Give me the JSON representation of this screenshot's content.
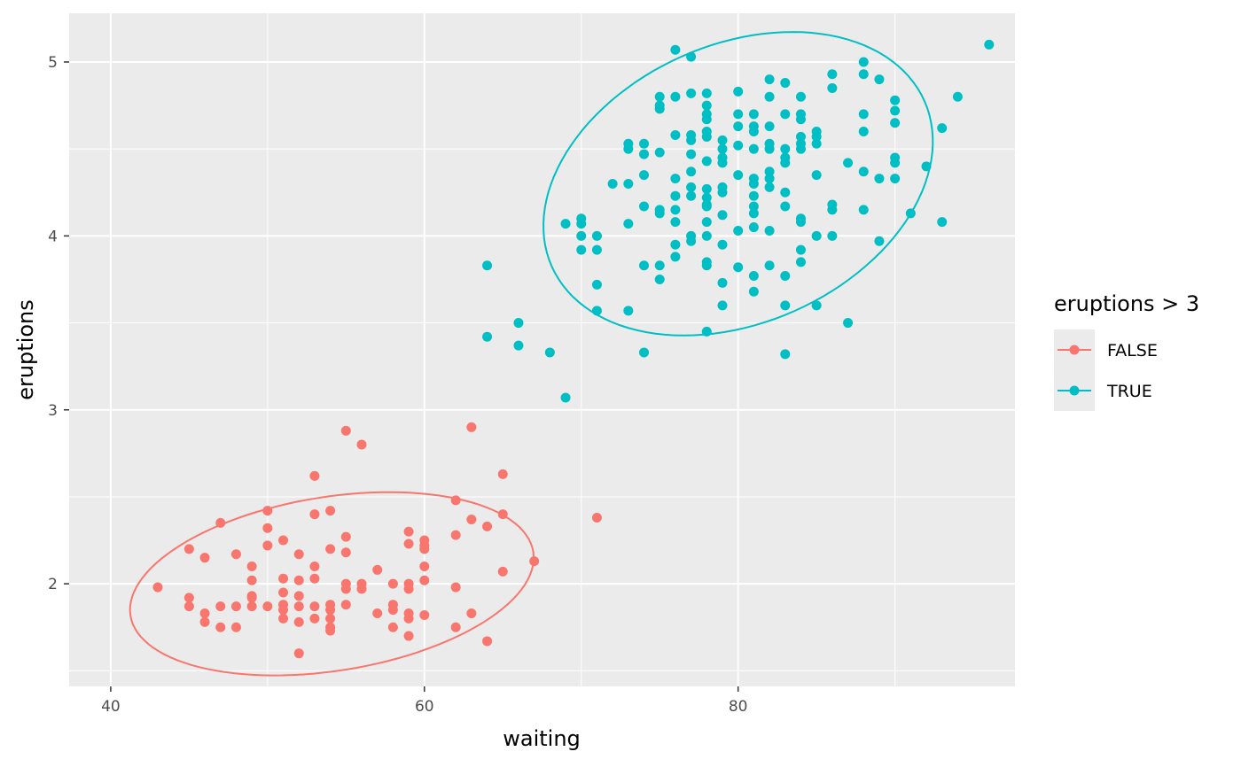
{
  "chart_data": {
    "type": "scatter",
    "xlabel": "waiting",
    "ylabel": "eruptions",
    "xlim": [
      37.35,
      97.65
    ],
    "ylim": [
      1.41,
      5.28
    ],
    "x_ticks": [
      40,
      60,
      80
    ],
    "y_ticks": [
      2,
      3,
      4,
      5
    ],
    "grid": true,
    "legend": {
      "title": "eruptions > 3",
      "position": "right",
      "entries": [
        "FALSE",
        "TRUE"
      ]
    },
    "colors": {
      "FALSE": "#F8766D",
      "TRUE": "#00BFC4"
    },
    "ellipses": [
      {
        "series": "FALSE",
        "cx": 54.1,
        "cy": 2.0,
        "rx": 13.0,
        "ry": 0.5,
        "rotation_deg": -9
      },
      {
        "series": "TRUE",
        "cx": 80.0,
        "cy": 4.3,
        "rx": 13.0,
        "ry": 0.8,
        "rotation_deg": -24
      }
    ],
    "series": [
      {
        "name": "FALSE",
        "points": [
          [
            43,
            1.98
          ],
          [
            45,
            2.2
          ],
          [
            45,
            1.92
          ],
          [
            45,
            1.87
          ],
          [
            46,
            2.15
          ],
          [
            46,
            1.83
          ],
          [
            46,
            1.78
          ],
          [
            47,
            2.35
          ],
          [
            47,
            1.87
          ],
          [
            47,
            1.75
          ],
          [
            48,
            2.17
          ],
          [
            48,
            1.87
          ],
          [
            48,
            1.75
          ],
          [
            49,
            2.1
          ],
          [
            49,
            2.02
          ],
          [
            49,
            1.93
          ],
          [
            49,
            1.92
          ],
          [
            49,
            1.87
          ],
          [
            50,
            2.42
          ],
          [
            50,
            2.32
          ],
          [
            50,
            2.22
          ],
          [
            50,
            1.87
          ],
          [
            51,
            2.25
          ],
          [
            51,
            2.03
          ],
          [
            51,
            1.95
          ],
          [
            51,
            1.88
          ],
          [
            51,
            1.85
          ],
          [
            51,
            1.8
          ],
          [
            52,
            2.17
          ],
          [
            52,
            2.02
          ],
          [
            52,
            1.93
          ],
          [
            52,
            1.87
          ],
          [
            52,
            1.78
          ],
          [
            52,
            1.6
          ],
          [
            53,
            2.62
          ],
          [
            53,
            2.4
          ],
          [
            53,
            2.1
          ],
          [
            53,
            2.03
          ],
          [
            53,
            1.87
          ],
          [
            53,
            1.8
          ],
          [
            54,
            2.42
          ],
          [
            54,
            2.2
          ],
          [
            54,
            1.88
          ],
          [
            54,
            1.85
          ],
          [
            54,
            1.8
          ],
          [
            54,
            1.75
          ],
          [
            54,
            1.73
          ],
          [
            55,
            2.88
          ],
          [
            55,
            2.27
          ],
          [
            55,
            2.18
          ],
          [
            55,
            2.0
          ],
          [
            55,
            1.97
          ],
          [
            55,
            1.88
          ],
          [
            56,
            2.8
          ],
          [
            56,
            2.0
          ],
          [
            56,
            1.97
          ],
          [
            57,
            2.08
          ],
          [
            57,
            1.83
          ],
          [
            58,
            2.0
          ],
          [
            58,
            1.88
          ],
          [
            58,
            1.85
          ],
          [
            58,
            1.75
          ],
          [
            59,
            2.3
          ],
          [
            59,
            2.23
          ],
          [
            59,
            2.0
          ],
          [
            59,
            1.97
          ],
          [
            59,
            1.83
          ],
          [
            59,
            1.8
          ],
          [
            59,
            1.7
          ],
          [
            60,
            2.25
          ],
          [
            60,
            2.22
          ],
          [
            60,
            2.2
          ],
          [
            60,
            2.1
          ],
          [
            60,
            2.02
          ],
          [
            60,
            1.82
          ],
          [
            62,
            2.48
          ],
          [
            62,
            2.28
          ],
          [
            62,
            1.98
          ],
          [
            62,
            1.75
          ],
          [
            63,
            2.9
          ],
          [
            63,
            2.37
          ],
          [
            63,
            1.83
          ],
          [
            64,
            2.33
          ],
          [
            64,
            1.67
          ],
          [
            65,
            2.63
          ],
          [
            65,
            2.4
          ],
          [
            65,
            2.07
          ],
          [
            67,
            2.13
          ],
          [
            71,
            2.38
          ]
        ]
      },
      {
        "name": "TRUE",
        "points": [
          [
            64,
            3.83
          ],
          [
            64,
            3.42
          ],
          [
            66,
            3.5
          ],
          [
            66,
            3.37
          ],
          [
            68,
            3.33
          ],
          [
            69,
            4.07
          ],
          [
            69,
            3.07
          ],
          [
            70,
            4.1
          ],
          [
            70,
            4.07
          ],
          [
            70,
            4.0
          ],
          [
            70,
            3.92
          ],
          [
            71,
            4.0
          ],
          [
            71,
            3.92
          ],
          [
            71,
            3.72
          ],
          [
            71,
            3.57
          ],
          [
            72,
            4.3
          ],
          [
            73,
            4.53
          ],
          [
            73,
            4.5
          ],
          [
            73,
            4.3
          ],
          [
            73,
            4.07
          ],
          [
            73,
            3.57
          ],
          [
            74,
            4.53
          ],
          [
            74,
            4.47
          ],
          [
            74,
            4.35
          ],
          [
            74,
            4.17
          ],
          [
            74,
            3.83
          ],
          [
            74,
            3.33
          ],
          [
            75,
            4.8
          ],
          [
            75,
            4.75
          ],
          [
            75,
            4.73
          ],
          [
            75,
            4.48
          ],
          [
            75,
            4.15
          ],
          [
            75,
            4.13
          ],
          [
            75,
            3.83
          ],
          [
            75,
            3.75
          ],
          [
            76,
            5.07
          ],
          [
            76,
            4.8
          ],
          [
            76,
            4.58
          ],
          [
            76,
            4.33
          ],
          [
            76,
            4.23
          ],
          [
            76,
            4.15
          ],
          [
            76,
            4.08
          ],
          [
            76,
            3.95
          ],
          [
            76,
            3.88
          ],
          [
            77,
            5.03
          ],
          [
            77,
            4.82
          ],
          [
            77,
            4.58
          ],
          [
            77,
            4.55
          ],
          [
            77,
            4.47
          ],
          [
            77,
            4.37
          ],
          [
            77,
            4.28
          ],
          [
            77,
            4.23
          ],
          [
            77,
            4.0
          ],
          [
            77,
            3.97
          ],
          [
            78,
            4.82
          ],
          [
            78,
            4.75
          ],
          [
            78,
            4.7
          ],
          [
            78,
            4.67
          ],
          [
            78,
            4.6
          ],
          [
            78,
            4.57
          ],
          [
            78,
            4.43
          ],
          [
            78,
            4.27
          ],
          [
            78,
            4.22
          ],
          [
            78,
            4.18
          ],
          [
            78,
            4.17
          ],
          [
            78,
            4.08
          ],
          [
            78,
            4.0
          ],
          [
            78,
            3.85
          ],
          [
            78,
            3.83
          ],
          [
            78,
            3.45
          ],
          [
            79,
            4.55
          ],
          [
            79,
            4.5
          ],
          [
            79,
            4.45
          ],
          [
            79,
            4.42
          ],
          [
            79,
            4.28
          ],
          [
            79,
            4.25
          ],
          [
            79,
            4.12
          ],
          [
            79,
            3.95
          ],
          [
            79,
            3.73
          ],
          [
            79,
            3.6
          ],
          [
            80,
            4.83
          ],
          [
            80,
            4.7
          ],
          [
            80,
            4.63
          ],
          [
            80,
            4.52
          ],
          [
            80,
            4.35
          ],
          [
            80,
            4.03
          ],
          [
            80,
            3.82
          ],
          [
            81,
            4.7
          ],
          [
            81,
            4.63
          ],
          [
            81,
            4.6
          ],
          [
            81,
            4.5
          ],
          [
            81,
            4.33
          ],
          [
            81,
            4.3
          ],
          [
            81,
            4.23
          ],
          [
            81,
            4.17
          ],
          [
            81,
            4.13
          ],
          [
            81,
            4.05
          ],
          [
            81,
            3.77
          ],
          [
            81,
            3.68
          ],
          [
            82,
            4.9
          ],
          [
            82,
            4.8
          ],
          [
            82,
            4.63
          ],
          [
            82,
            4.53
          ],
          [
            82,
            4.5
          ],
          [
            82,
            4.37
          ],
          [
            82,
            4.33
          ],
          [
            82,
            4.28
          ],
          [
            82,
            4.03
          ],
          [
            82,
            3.83
          ],
          [
            83,
            4.88
          ],
          [
            83,
            4.7
          ],
          [
            83,
            4.5
          ],
          [
            83,
            4.45
          ],
          [
            83,
            4.42
          ],
          [
            83,
            4.25
          ],
          [
            83,
            4.17
          ],
          [
            83,
            3.77
          ],
          [
            83,
            3.6
          ],
          [
            83,
            3.32
          ],
          [
            84,
            4.8
          ],
          [
            84,
            4.7
          ],
          [
            84,
            4.67
          ],
          [
            84,
            4.57
          ],
          [
            84,
            4.53
          ],
          [
            84,
            4.5
          ],
          [
            84,
            4.1
          ],
          [
            84,
            4.08
          ],
          [
            84,
            3.92
          ],
          [
            84,
            3.85
          ],
          [
            85,
            4.6
          ],
          [
            85,
            4.57
          ],
          [
            85,
            4.53
          ],
          [
            85,
            4.35
          ],
          [
            85,
            4.0
          ],
          [
            85,
            3.6
          ],
          [
            86,
            4.93
          ],
          [
            86,
            4.85
          ],
          [
            86,
            4.18
          ],
          [
            86,
            4.15
          ],
          [
            86,
            4.0
          ],
          [
            87,
            4.42
          ],
          [
            87,
            3.5
          ],
          [
            88,
            5.0
          ],
          [
            88,
            4.93
          ],
          [
            88,
            4.7
          ],
          [
            88,
            4.6
          ],
          [
            88,
            4.37
          ],
          [
            88,
            4.15
          ],
          [
            89,
            4.9
          ],
          [
            89,
            4.33
          ],
          [
            89,
            3.97
          ],
          [
            90,
            4.78
          ],
          [
            90,
            4.72
          ],
          [
            90,
            4.65
          ],
          [
            90,
            4.45
          ],
          [
            90,
            4.42
          ],
          [
            90,
            4.33
          ],
          [
            91,
            4.13
          ],
          [
            92,
            4.4
          ],
          [
            93,
            4.62
          ],
          [
            93,
            4.08
          ],
          [
            94,
            4.8
          ],
          [
            96,
            5.1
          ]
        ]
      }
    ]
  }
}
